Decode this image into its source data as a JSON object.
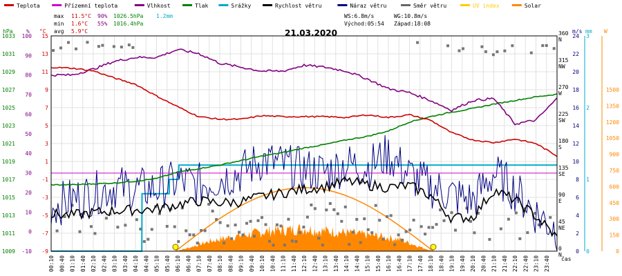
{
  "chart_data": {
    "type": "line",
    "title": "21.03.2020",
    "xlabel": "čas",
    "legend_position": "top",
    "legend": [
      {
        "name": "Teplota",
        "color": "#cc0000"
      },
      {
        "name": "Přízemní teplota",
        "color": "#cc00cc"
      },
      {
        "name": "Vlhkost",
        "color": "#800080"
      },
      {
        "name": "Tlak",
        "color": "#008000"
      },
      {
        "name": "Srážky",
        "color": "#00aacc"
      },
      {
        "name": "Rychlost větru",
        "color": "#000000"
      },
      {
        "name": "Náraz větru",
        "color": "#000080"
      },
      {
        "name": "Směr větru",
        "color": "#666666"
      },
      {
        "name": "UV index",
        "color": "#ffcc00"
      },
      {
        "name": "Solar",
        "color": "#ff8800"
      }
    ],
    "stats": {
      "max_label": "max",
      "min_label": "min",
      "avg_label": "avg",
      "temp_max": "11.5°C",
      "temp_min": "1.6°C",
      "temp_avg": "5.9°C",
      "hum_max": "90%",
      "hum_min": "55%",
      "press_max": "1026.5hPa",
      "press_min": "1016.4hPa",
      "rain_total": "1.2mm"
    },
    "wind_info": {
      "ws": "WS:6.8m/s",
      "wg": "WG:10.8m/s",
      "sunrise": "Východ:05:54",
      "sunset": "Západ:18:08"
    },
    "axes": {
      "pressure": {
        "unit": "hPa",
        "range": [
          1009,
          1033
        ],
        "ticks": [
          "1033",
          "1031",
          "1029",
          "1027",
          "1025",
          "1023",
          "1021",
          "1019",
          "1017",
          "1015",
          "1013",
          "1011",
          "1009"
        ]
      },
      "humidity": {
        "unit": "%",
        "range": [
          -10,
          100
        ],
        "ticks": [
          "100",
          "90",
          "80",
          "70",
          "60",
          "50",
          "40",
          "30",
          "20",
          "10",
          "0",
          "-10"
        ]
      },
      "temperature": {
        "unit": "°C",
        "range": [
          -9,
          15
        ],
        "ticks": [
          "15",
          "13",
          "11",
          "9",
          "7",
          "5",
          "3",
          "1",
          "-1",
          "-3",
          "-5",
          "-7",
          "-9"
        ]
      },
      "wind_direction": {
        "range": [
          0,
          360
        ],
        "ticks": [
          {
            "v": 360,
            "label": "N"
          },
          {
            "v": 315,
            "label": "NW"
          },
          {
            "v": 270,
            "label": "W"
          },
          {
            "v": 225,
            "label": "SW"
          },
          {
            "v": 180,
            "label": "S"
          },
          {
            "v": 135,
            "label": "SE"
          },
          {
            "v": 90,
            "label": "E"
          },
          {
            "v": 45,
            "label": "NE"
          },
          {
            "v": 0,
            "label": "N"
          }
        ]
      },
      "wind_speed": {
        "unit": "m/s",
        "range": [
          0,
          24
        ],
        "ticks": [
          "24",
          "22",
          "20",
          "18",
          "16",
          "14",
          "12",
          "10",
          "8",
          "6",
          "4",
          "2",
          "0"
        ]
      },
      "rain": {
        "unit": "mm",
        "range": [
          0,
          3
        ],
        "ticks": [
          "3",
          "2",
          "1",
          "0"
        ]
      },
      "solar": {
        "unit": "W",
        "range": [
          0,
          2000
        ],
        "ticks": [
          "1500",
          "1350",
          "1200",
          "1050",
          "900",
          "750",
          "600",
          "450",
          "300",
          "150",
          "0"
        ]
      }
    },
    "x_ticks": [
      "00:10",
      "00:40",
      "01:10",
      "01:40",
      "02:10",
      "02:40",
      "03:10",
      "03:40",
      "04:10",
      "04:40",
      "05:10",
      "05:40",
      "06:10",
      "06:40",
      "07:10",
      "07:40",
      "08:10",
      "08:40",
      "09:10",
      "09:40",
      "10:10",
      "10:40",
      "11:10",
      "11:40",
      "12:10",
      "12:40",
      "13:10",
      "13:40",
      "14:10",
      "14:40",
      "15:10",
      "15:40",
      "16:10",
      "16:40",
      "17:10",
      "17:40",
      "18:10",
      "18:40",
      "19:10",
      "19:40",
      "20:10",
      "20:40",
      "21:10",
      "21:40",
      "22:10",
      "22:40",
      "23:10",
      "23:40"
    ],
    "series": [
      {
        "name": "Teplota",
        "unit": "°C",
        "x": [
          0,
          1,
          2,
          3,
          4,
          5,
          6,
          7,
          8,
          9,
          10,
          11,
          12,
          13,
          14,
          15,
          16,
          17,
          18,
          19,
          20,
          21,
          22,
          23,
          24
        ],
        "values": [
          11.5,
          11.4,
          11.1,
          10.3,
          9.6,
          8.3,
          7.1,
          6.0,
          5.7,
          5.7,
          6.1,
          6.0,
          6.0,
          6.0,
          5.9,
          6.2,
          5.9,
          6.2,
          5.6,
          4.2,
          3.4,
          3.1,
          3.5,
          3.0,
          1.6
        ]
      },
      {
        "name": "Přízemní teplota",
        "unit": "°C",
        "x": [
          0,
          24
        ],
        "values": [
          -0.3,
          -0.3
        ]
      },
      {
        "name": "Vlhkost",
        "unit": "%",
        "x": [
          0,
          1,
          2,
          3,
          4,
          5,
          6,
          7,
          8,
          9,
          10,
          11,
          12,
          13,
          14,
          15,
          16,
          17,
          18,
          19,
          20,
          21,
          22,
          23,
          24
        ],
        "values": [
          80,
          80,
          83,
          87,
          89,
          89,
          93,
          91,
          86,
          84,
          82,
          82,
          85,
          84,
          82,
          78,
          73,
          71,
          67,
          62,
          67,
          68,
          55,
          57,
          68
        ]
      },
      {
        "name": "Tlak",
        "unit": "hPa",
        "x": [
          0,
          1,
          2,
          3,
          4,
          5,
          6,
          7,
          8,
          9,
          10,
          11,
          12,
          13,
          14,
          15,
          16,
          17,
          18,
          19,
          20,
          21,
          22,
          23,
          24
        ],
        "values": [
          1016.4,
          1016.4,
          1016.5,
          1016.6,
          1016.8,
          1017.1,
          1017.8,
          1018.2,
          1018.6,
          1019.1,
          1019.6,
          1020.0,
          1020.5,
          1020.9,
          1021.4,
          1021.8,
          1022.4,
          1023.4,
          1024.0,
          1024.5,
          1024.9,
          1025.4,
          1025.8,
          1026.2,
          1026.5
        ]
      },
      {
        "name": "Srážky",
        "unit": "mm",
        "x": [
          0,
          4.3,
          4.31,
          5.6,
          5.61,
          6.05,
          6.06,
          24
        ],
        "values": [
          0,
          0,
          0.8,
          0.8,
          1.0,
          1.0,
          1.2,
          1.2
        ]
      },
      {
        "name": "Rychlost větru",
        "unit": "m/s",
        "x": [
          0,
          1,
          2,
          3,
          4,
          5,
          6,
          7,
          8,
          9,
          10,
          11,
          12,
          13,
          14,
          15,
          16,
          17,
          18,
          19,
          20,
          21,
          22,
          23,
          24
        ],
        "values": [
          4.1,
          4.0,
          4.3,
          4.5,
          4.6,
          4.7,
          5.2,
          5.6,
          5.4,
          5.5,
          6.1,
          6.5,
          6.9,
          7.2,
          7.8,
          7.4,
          7.1,
          7.3,
          6.2,
          3.7,
          3.8,
          6.8,
          5.7,
          3.9,
          1.5
        ]
      },
      {
        "name": "Náraz větru",
        "unit": "m/s",
        "x": [
          0,
          1,
          2,
          3,
          4,
          5,
          6,
          7,
          8,
          9,
          10,
          11,
          12,
          13,
          14,
          15,
          16,
          17,
          18,
          19,
          20,
          21,
          22,
          23,
          24
        ],
        "values": [
          5.0,
          5.8,
          6.4,
          7.2,
          6.9,
          7.0,
          7.8,
          7.4,
          8.1,
          8.8,
          10.2,
          9.6,
          9.1,
          8.8,
          9.7,
          9.4,
          10.8,
          8.5,
          7.2,
          6.3,
          5.6,
          8.7,
          6.8,
          4.2,
          2.4
        ]
      },
      {
        "name": "Solar",
        "unit": "W",
        "x": [
          5.9,
          6.5,
          7.5,
          8.5,
          9.5,
          10.5,
          11.5,
          12.0,
          12.5,
          13.5,
          14.5,
          15.5,
          16.5,
          17.5,
          18.1
        ],
        "values": [
          0,
          30,
          90,
          130,
          160,
          190,
          200,
          210,
          195,
          180,
          160,
          140,
          110,
          40,
          0
        ]
      }
    ],
    "sun_curve": {
      "sunrise_hour": 5.9,
      "sunset_hour": 18.13
    },
    "wind_direction_points": {
      "unit": "deg"
    }
  }
}
